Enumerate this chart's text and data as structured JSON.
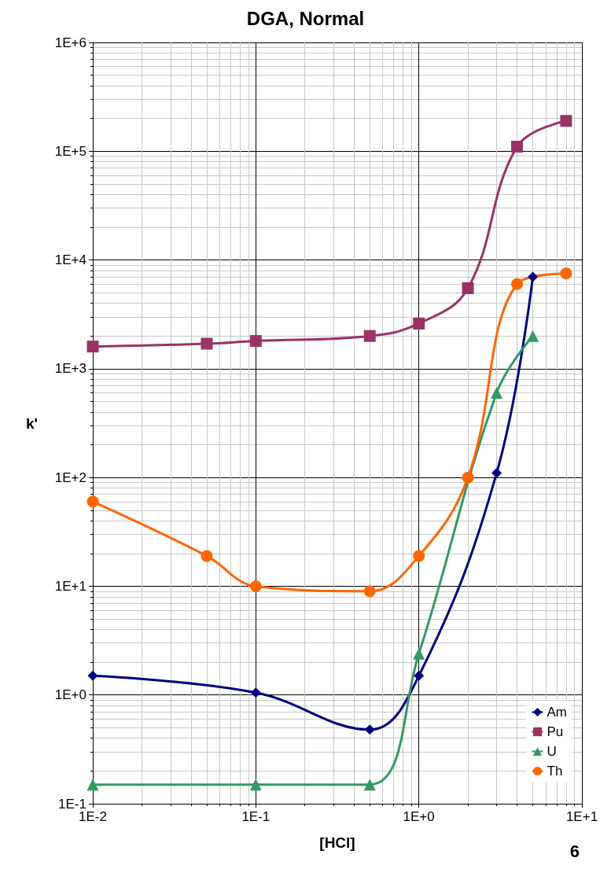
{
  "chart_data": {
    "type": "line",
    "title": "DGA, Normal",
    "xlabel": "[HCl]",
    "ylabel": "k'",
    "log": "xy",
    "grid": true,
    "legend": "bottom right",
    "line_style": "solid",
    "xlim": [
      0.01,
      10
    ],
    "xticks": [
      {
        "value": 0.01,
        "label": "1E-2"
      },
      {
        "value": 0.1,
        "label": "1E-1"
      },
      {
        "value": 1,
        "label": "1E+0"
      },
      {
        "value": 10,
        "label": "1E+1"
      }
    ],
    "ylim": [
      0.1,
      1000000
    ],
    "yticks": [
      {
        "value": 0.1,
        "label": "1E-1"
      },
      {
        "value": 1,
        "label": "1E+0"
      },
      {
        "value": 10,
        "label": "1E+1"
      },
      {
        "value": 100,
        "label": "1E+2"
      },
      {
        "value": 1000,
        "label": "1E+3"
      },
      {
        "value": 10000,
        "label": "1E+4"
      },
      {
        "value": 100000,
        "label": "1E+5"
      },
      {
        "value": 1000000,
        "label": "1E+6"
      }
    ],
    "series": [
      {
        "name": "Am",
        "color": "#000080",
        "marker": "diamond",
        "x": [
          0.01,
          0.1,
          0.5,
          1,
          3,
          5
        ],
        "values": [
          1.5,
          1.05,
          0.48,
          1.5,
          110,
          7000
        ]
      },
      {
        "name": "Pu",
        "color": "#993366",
        "marker": "square",
        "x": [
          0.01,
          0.05,
          0.1,
          0.5,
          1,
          2,
          4,
          8
        ],
        "values": [
          1600,
          1700,
          1800,
          2000,
          2600,
          5500,
          110000,
          190000
        ]
      },
      {
        "name": "U",
        "color": "#339966",
        "marker": "triangle",
        "x": [
          0.01,
          0.1,
          0.5,
          1,
          3,
          5
        ],
        "values": [
          0.15,
          0.15,
          0.15,
          2.4,
          600,
          2000
        ]
      },
      {
        "name": "Th",
        "color": "#ff6600",
        "marker": "circle",
        "x": [
          0.01,
          0.05,
          0.1,
          0.5,
          1,
          2,
          4,
          8
        ],
        "values": [
          60,
          19,
          10,
          9,
          19,
          100,
          6000,
          7500
        ]
      }
    ],
    "annotations": [
      "6"
    ]
  }
}
